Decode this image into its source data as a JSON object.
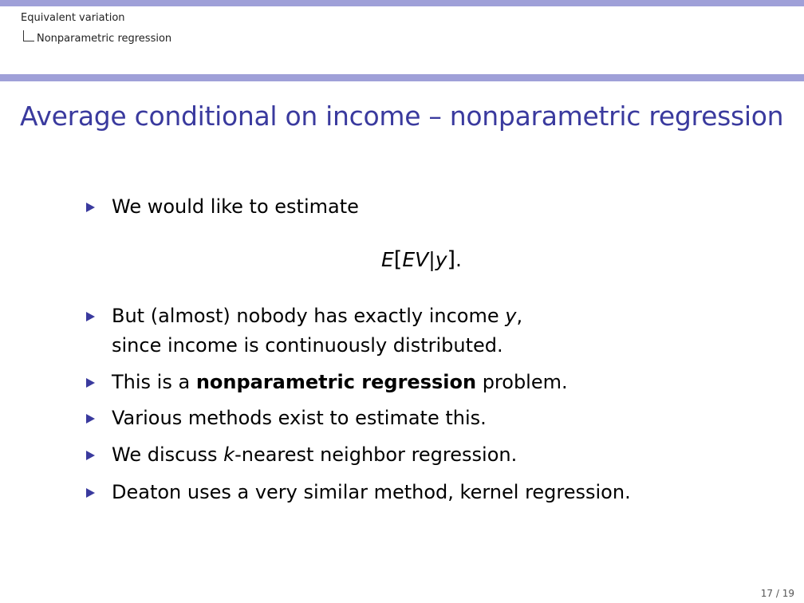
{
  "header": {
    "section": "Equivalent variation",
    "subsection": "Nonparametric regression"
  },
  "slide": {
    "title": "Average conditional on income – nonparametric regression",
    "bullet1": {
      "text": "We would like to estimate"
    },
    "equation": {
      "E": "E",
      "open": "[",
      "EV": "EV",
      "bar": "|",
      "y": "y",
      "close": "]",
      "end": "."
    },
    "bullet2": {
      "pre": "But (almost) nobody has exactly income ",
      "var": "y",
      "post": ",",
      "line2": "since income is continuously distributed."
    },
    "bullet3": {
      "pre": "This is a ",
      "bold": "nonparametric regression",
      "post": " problem."
    },
    "bullet4": {
      "text": "Various methods exist to estimate this."
    },
    "bullet5": {
      "pre": "We discuss ",
      "var": "k",
      "post": "-nearest neighbor regression."
    },
    "bullet6": {
      "text": "Deaton uses a very similar method, kernel regression."
    }
  },
  "footer": {
    "page": "17 / 19"
  },
  "colors": {
    "accent": "#3a3a9e",
    "bar": "#9fa0d8"
  }
}
